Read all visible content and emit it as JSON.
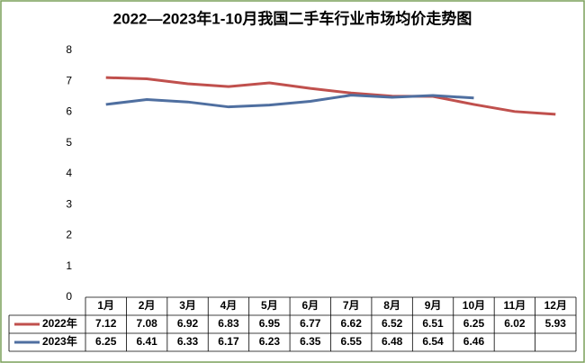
{
  "chart_data": {
    "type": "line",
    "title": "2022—2023年1-10月我国二手车行业市场均价走势图",
    "categories": [
      "1月",
      "2月",
      "3月",
      "4月",
      "5月",
      "6月",
      "7月",
      "8月",
      "9月",
      "10月",
      "11月",
      "12月"
    ],
    "series": [
      {
        "name": "2022年",
        "color": "#c0504d",
        "values": [
          7.12,
          7.08,
          6.92,
          6.83,
          6.95,
          6.77,
          6.62,
          6.52,
          6.51,
          6.25,
          6.02,
          5.93
        ]
      },
      {
        "name": "2023年",
        "color": "#4f6fa0",
        "values": [
          6.25,
          6.41,
          6.33,
          6.17,
          6.23,
          6.35,
          6.55,
          6.48,
          6.54,
          6.46,
          null,
          null
        ]
      }
    ],
    "ylim": [
      0,
      8
    ],
    "yticks": [
      0,
      1,
      2,
      3,
      4,
      5,
      6,
      7,
      8
    ],
    "grid": false
  }
}
